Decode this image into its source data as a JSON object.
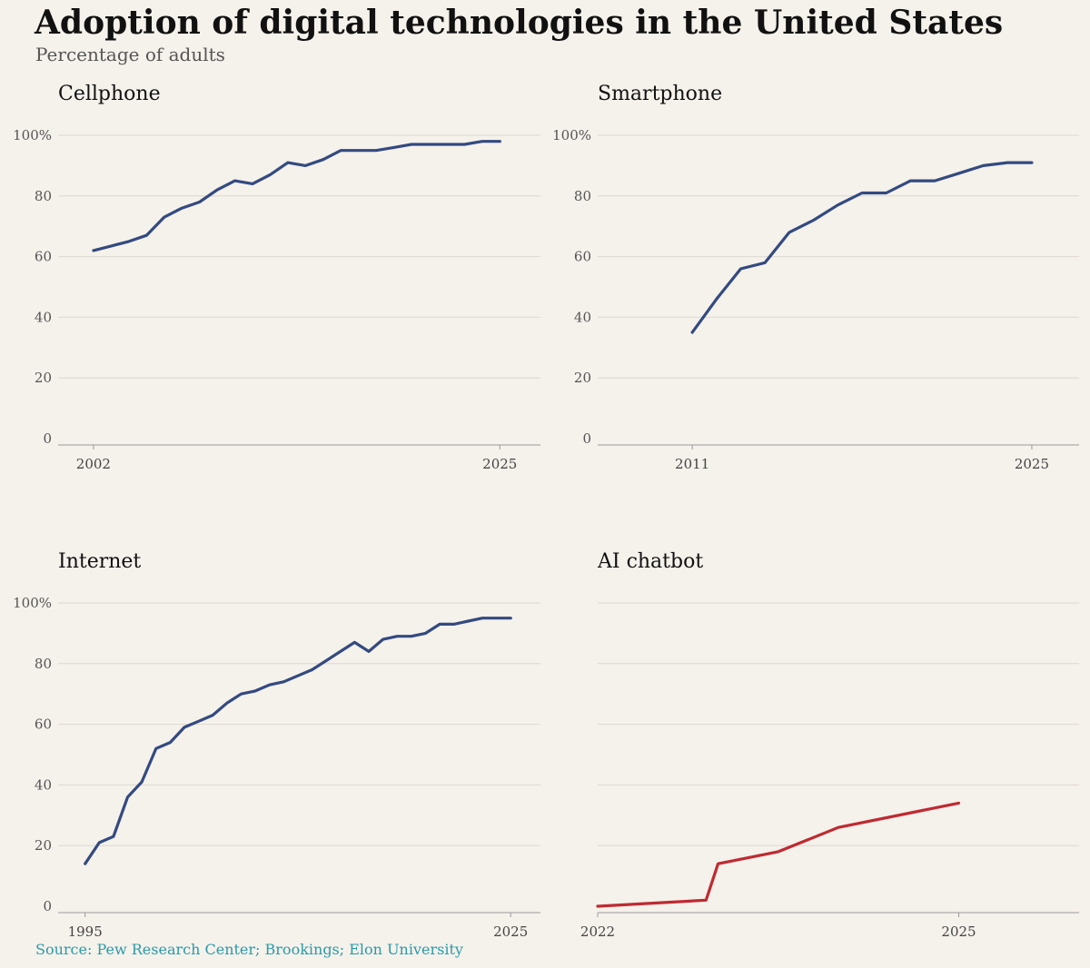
{
  "title": "Adoption of digital technologies in the United States",
  "subtitle": "Percentage of adults",
  "source": "Source: Pew Research Center; Brookings; Elon University",
  "colors": {
    "blue": "#334a80",
    "red": "#bf2a31",
    "grid": "#dcd8d2",
    "axis": "#9a9a9a"
  },
  "chart_data": [
    {
      "type": "line",
      "title": "Cellphone",
      "color": "#334a80",
      "xlim": [
        2000,
        2027.3
      ],
      "ylim": [
        0,
        100
      ],
      "xticks": [
        "2002",
        "2025"
      ],
      "yticks": [
        "100%",
        "80",
        "60",
        "40",
        "20",
        "0"
      ],
      "x": [
        2002,
        2003,
        2004,
        2005,
        2006,
        2007,
        2008,
        2009,
        2010,
        2011,
        2012,
        2013,
        2014,
        2015,
        2016,
        2017,
        2018,
        2019,
        2020,
        2021,
        2022,
        2023,
        2024,
        2025
      ],
      "values": [
        62,
        63.5,
        65,
        67,
        73,
        76,
        78,
        82,
        85,
        84,
        87,
        91,
        90,
        92,
        95,
        95,
        95,
        96,
        97,
        97,
        97,
        97,
        98,
        98
      ]
    },
    {
      "type": "line",
      "title": "Smartphone",
      "color": "#334a80",
      "xlim": [
        2007.1,
        2026.95
      ],
      "ylim": [
        0,
        100
      ],
      "xticks": [
        "2011",
        "2025"
      ],
      "yticks": [
        "100%",
        "80",
        "60",
        "40",
        "20",
        "0"
      ],
      "x": [
        2011,
        2012,
        2013,
        2014,
        2015,
        2016,
        2017,
        2018,
        2019,
        2020,
        2021,
        2022,
        2023,
        2024,
        2025
      ],
      "values": [
        35,
        46,
        56,
        58,
        68,
        72,
        77,
        81,
        81,
        85,
        85,
        87.5,
        90,
        91,
        91
      ]
    },
    {
      "type": "line",
      "title": "Internet",
      "color": "#334a80",
      "xlim": [
        1993.1,
        2027.1
      ],
      "ylim": [
        0,
        100
      ],
      "xticks": [
        "1995",
        "2025"
      ],
      "yticks": [
        "100%",
        "80",
        "60",
        "40",
        "20",
        "0"
      ],
      "x": [
        1995,
        1996,
        1997,
        1998,
        1999,
        2000,
        2001,
        2002,
        2003,
        2004,
        2005,
        2006,
        2007,
        2008,
        2009,
        2010,
        2011,
        2012,
        2013,
        2014,
        2015,
        2016,
        2017,
        2018,
        2019,
        2020,
        2021,
        2022,
        2023,
        2024,
        2025
      ],
      "values": [
        14,
        21,
        23,
        36,
        41,
        52,
        54,
        59,
        61,
        63,
        67,
        70,
        71,
        73,
        74,
        76,
        78,
        81,
        84,
        87,
        84,
        88,
        89,
        89,
        90,
        93,
        93,
        94,
        95,
        95,
        95
      ]
    },
    {
      "type": "line",
      "title": "AI chatbot",
      "color": "#bf2a31",
      "xlim": [
        2022,
        2026.0
      ],
      "ylim": [
        0,
        100
      ],
      "xticks": [
        "2022",
        "2025"
      ],
      "yticks": [
        "",
        "",
        "",
        "",
        "",
        ""
      ],
      "x": [
        2022.0,
        2022.9,
        2023.0,
        2023.5,
        2024.0,
        2025.0
      ],
      "values": [
        0,
        2,
        14,
        18,
        26,
        34
      ]
    }
  ]
}
